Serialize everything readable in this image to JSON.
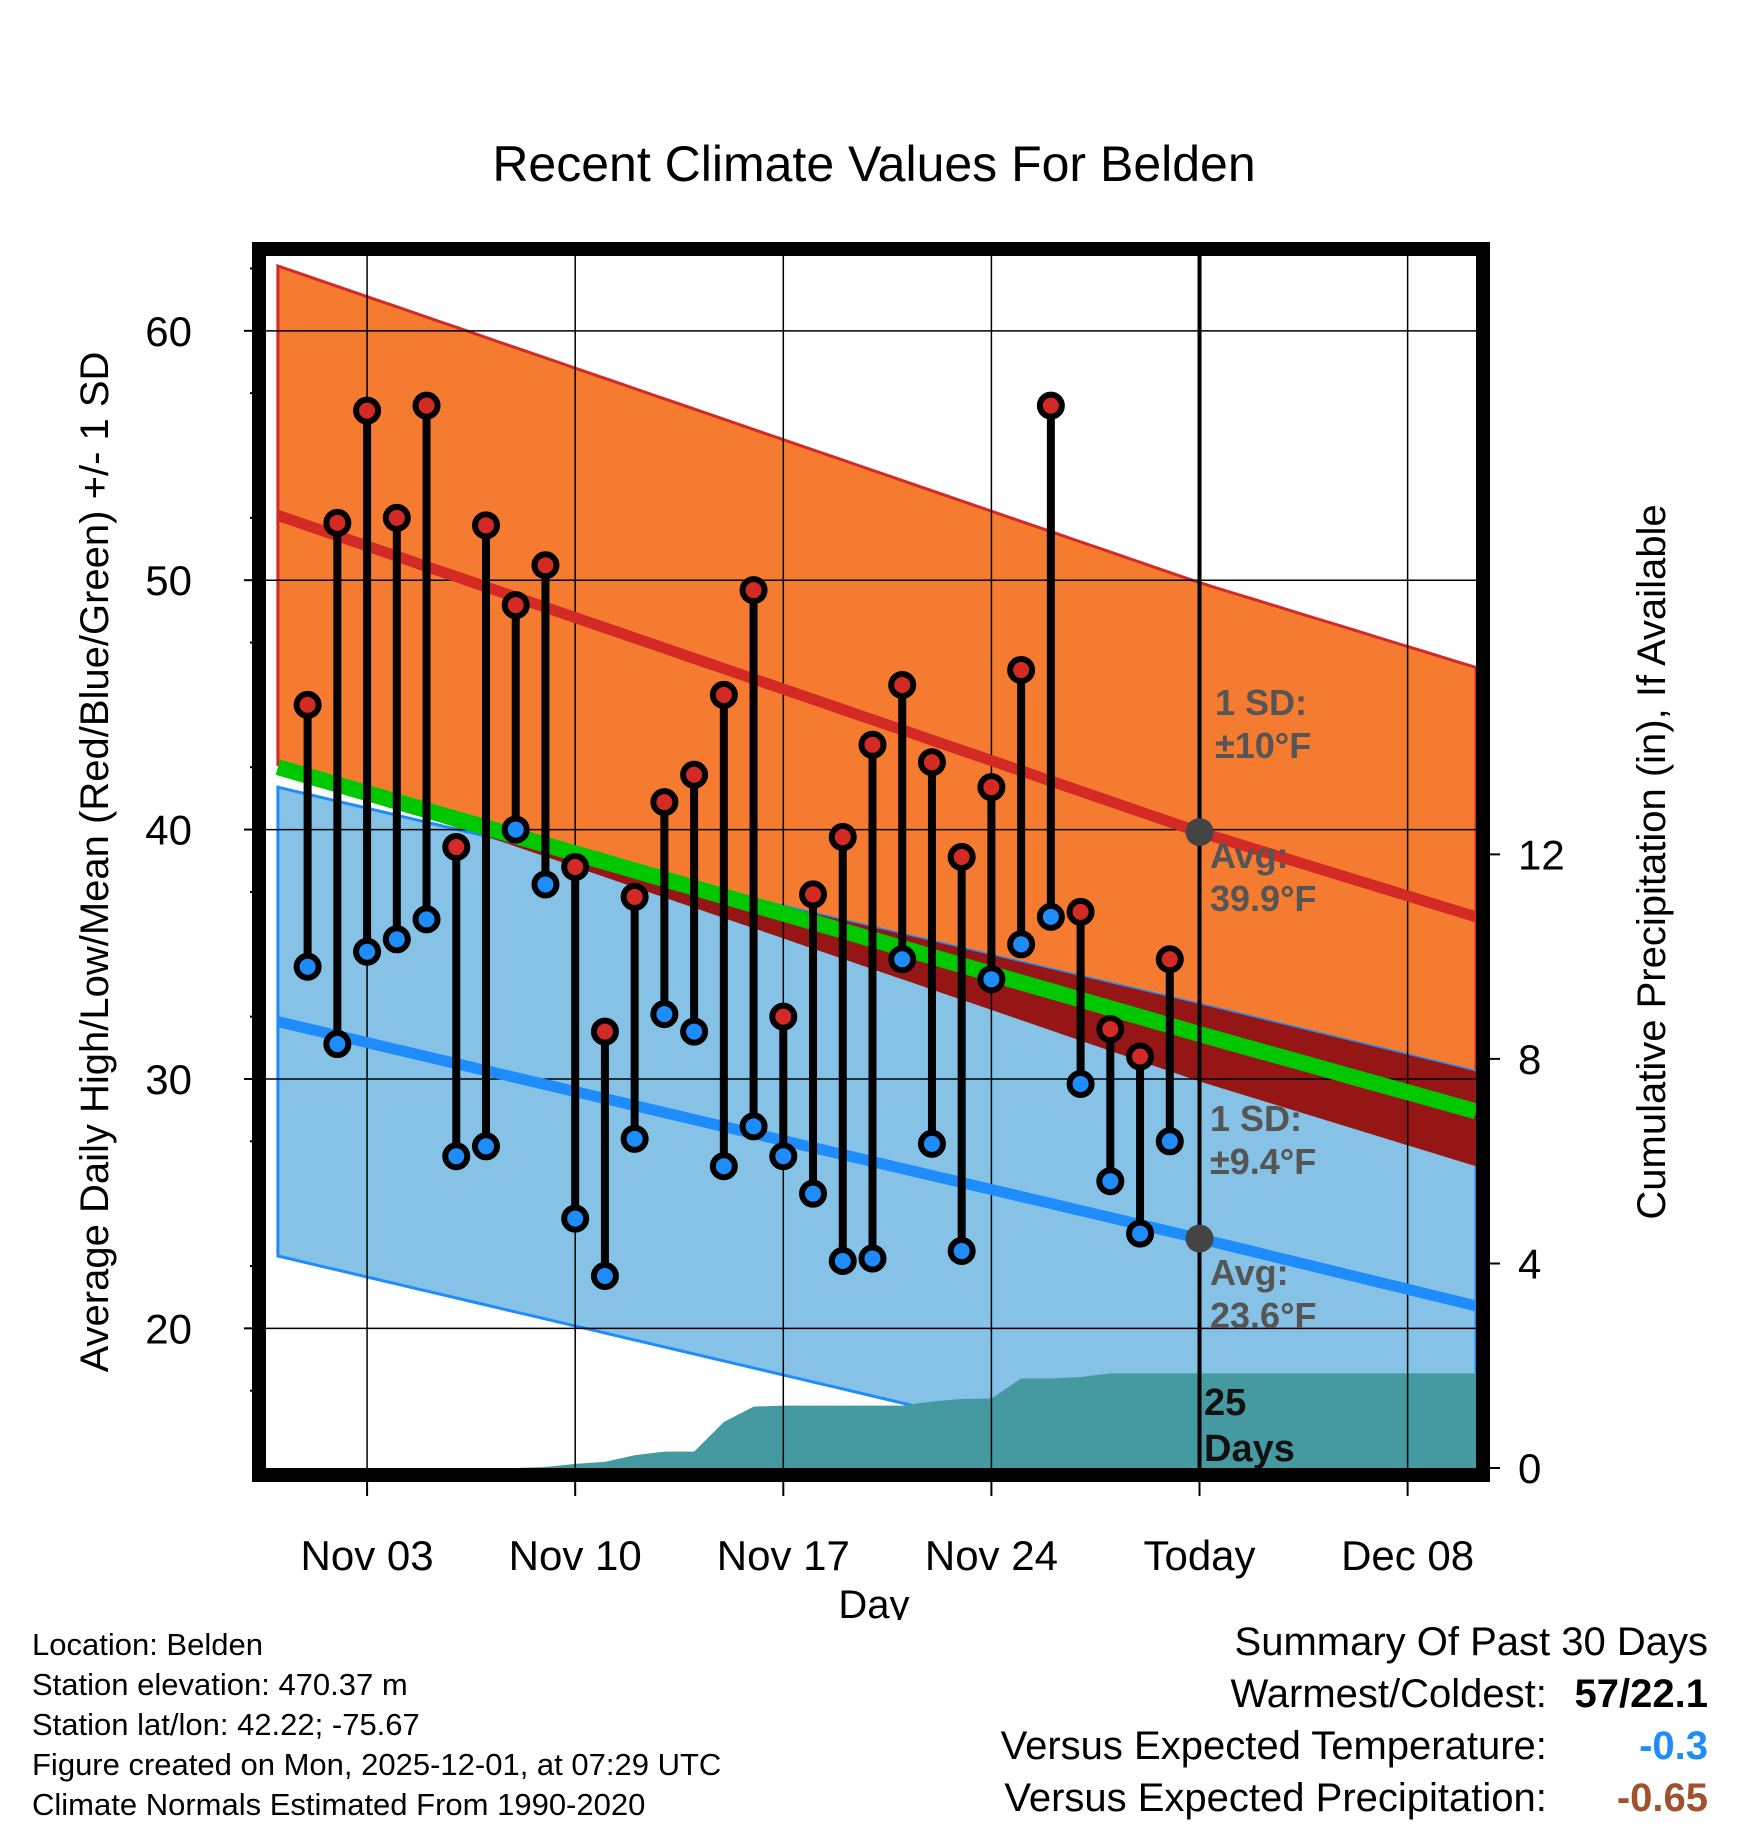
{
  "chart_data": {
    "type": "line",
    "title": "Recent Climate Values For Belden",
    "xlabel": "Day",
    "ylabel": "Average Daily High/Low/Mean (Red/Blue/Green) +/- 1 SD",
    "y2label": "Cumulative Precipitation (in), If Available",
    "ylim": [
      14.4,
      63
    ],
    "y2lim": [
      0,
      23.7
    ],
    "xlim": [
      -0.4,
      40.3
    ],
    "x_ticks": [
      {
        "day": 3,
        "label": "Nov 03"
      },
      {
        "day": 10,
        "label": "Nov 10"
      },
      {
        "day": 17,
        "label": "Nov 17"
      },
      {
        "day": 24,
        "label": "Nov 24"
      },
      {
        "day": 31,
        "label": "Today"
      },
      {
        "day": 38,
        "label": "Dec 08"
      }
    ],
    "y_ticks": [
      20,
      30,
      40,
      50,
      60
    ],
    "y2_ticks": [
      0,
      4,
      8,
      12
    ],
    "today_day": 31,
    "normals": {
      "x": [
        0,
        31,
        40.3
      ],
      "high_mean": [
        52.6,
        39.9,
        36.5
      ],
      "high_sd": 10,
      "low_mean": [
        32.3,
        23.6,
        20.9
      ],
      "low_sd": 9.4,
      "mean": [
        42.5,
        31.8,
        28.7
      ]
    },
    "observed": {
      "days": [
        1,
        2,
        3,
        4,
        5,
        6,
        7,
        8,
        9,
        10,
        11,
        12,
        13,
        14,
        15,
        16,
        17,
        18,
        19,
        20,
        21,
        22,
        23,
        24,
        25,
        26,
        27,
        28,
        29,
        30
      ],
      "highs": [
        45,
        52.3,
        56.8,
        52.5,
        57,
        39.3,
        52.2,
        49,
        50.6,
        38.5,
        31.9,
        37.3,
        41.1,
        42.2,
        45.4,
        49.6,
        32.5,
        37.4,
        39.7,
        43.4,
        45.8,
        42.7,
        38.9,
        41.7,
        46.4,
        57,
        36.7,
        32,
        30.9,
        34.8
      ],
      "lows": [
        34.5,
        31.4,
        35.1,
        35.6,
        36.4,
        26.9,
        27.3,
        40,
        37.8,
        24.4,
        22.1,
        27.6,
        32.6,
        31.9,
        26.5,
        28.1,
        26.9,
        25.4,
        22.7,
        22.8,
        34.8,
        27.4,
        23.1,
        34,
        35.4,
        36.5,
        29.8,
        25.9,
        23.8,
        27.5
      ]
    },
    "precip": {
      "days": [
        0,
        8,
        9,
        10,
        11,
        12,
        13,
        14,
        15,
        16,
        17,
        18,
        19,
        20,
        21,
        22,
        23,
        24,
        25,
        26,
        27,
        28,
        29,
        30,
        40.3
      ],
      "cumulative": [
        0,
        0,
        0.02,
        0.08,
        0.12,
        0.25,
        0.32,
        0.32,
        0.9,
        1.2,
        1.22,
        1.22,
        1.22,
        1.22,
        1.22,
        1.3,
        1.35,
        1.36,
        1.75,
        1.75,
        1.78,
        1.85,
        1.85,
        1.85,
        1.85
      ]
    },
    "annotations": {
      "high_sd": [
        "1 SD:",
        "±10°F"
      ],
      "high_avg": [
        "Avg:",
        "39.9°F"
      ],
      "low_sd": [
        "1 SD:",
        "±9.4°F"
      ],
      "low_avg": [
        "Avg:",
        "23.6°F"
      ],
      "days": [
        "25",
        "Days"
      ]
    }
  },
  "colors": {
    "high_band": "#F47B30",
    "high_line": "#D42A26",
    "low_band": "#85C2E6",
    "low_line": "#1E8CFA",
    "mean_line": "#00C800",
    "overlap": "#961616",
    "precip": "#4599A0",
    "marker_high": "#D42A26",
    "marker_low": "#1E8CFA",
    "today_dot": "#444444"
  },
  "footer": {
    "lines": [
      "Location: Belden",
      "Station elevation: 470.37 m",
      "Station lat/lon: 42.22; -75.67",
      "Figure created on Mon, 2025-12-01, at 07:29 UTC",
      "Climate Normals Estimated From 1990-2020"
    ]
  },
  "summary": {
    "title": "Summary Of Past 30 Days",
    "rows": [
      {
        "label": "Warmest/Coldest:",
        "value": "57/22.1",
        "color": "#000000"
      },
      {
        "label": "Versus Expected Temperature:",
        "value": "-0.3",
        "color": "#1E8CFA"
      },
      {
        "label": "Versus Expected Precipitation:",
        "value": "-0.65",
        "color": "#A0522D"
      }
    ]
  }
}
